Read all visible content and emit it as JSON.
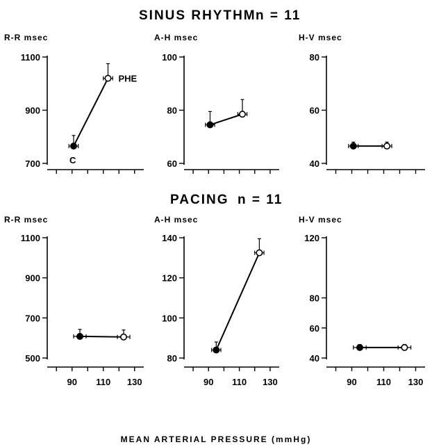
{
  "sections": [
    {
      "id": "sinus",
      "title": "SINUS RHYTHM",
      "n_label": "n = 11"
    },
    {
      "id": "pacing",
      "title": "PACING",
      "n_label": "n = 11"
    }
  ],
  "x_axis_label": "MEAN ARTERIAL PRESSURE (mmHg)",
  "chart_data": [
    {
      "type": "line",
      "section": "sinus",
      "panel_label": "R-R msec",
      "ylim": [
        700,
        1100
      ],
      "yticks": [
        700,
        900,
        1100
      ],
      "xlim": [
        75,
        135
      ],
      "xticks": [],
      "points": [
        {
          "condition": "C",
          "x": 91,
          "y": 765,
          "y_err": 40,
          "x_err": 3,
          "fill": "filled",
          "label": "C"
        },
        {
          "condition": "PHE",
          "x": 113,
          "y": 1020,
          "y_err": 55,
          "x_err": 3,
          "fill": "open",
          "label": "PHE"
        }
      ]
    },
    {
      "type": "line",
      "section": "sinus",
      "panel_label": "A-H msec",
      "ylim": [
        60,
        100
      ],
      "yticks": [
        60,
        80,
        100
      ],
      "xlim": [
        75,
        135
      ],
      "xticks": [],
      "points": [
        {
          "condition": "C",
          "x": 91,
          "y": 74.5,
          "y_err": 5,
          "x_err": 3,
          "fill": "filled"
        },
        {
          "condition": "PHE",
          "x": 112,
          "y": 78.5,
          "y_err": 5.5,
          "x_err": 3,
          "fill": "open"
        }
      ]
    },
    {
      "type": "line",
      "section": "sinus",
      "panel_label": "H-V msec",
      "ylim": [
        40,
        80
      ],
      "yticks": [
        40,
        60,
        80
      ],
      "xlim": [
        75,
        135
      ],
      "xticks": [],
      "points": [
        {
          "condition": "C",
          "x": 91,
          "y": 46.5,
          "y_err": 1.5,
          "x_err": 3,
          "fill": "filled"
        },
        {
          "condition": "PHE",
          "x": 112,
          "y": 46.5,
          "y_err": 1.5,
          "x_err": 3,
          "fill": "open"
        }
      ]
    },
    {
      "type": "line",
      "section": "pacing",
      "panel_label": "R-R msec",
      "ylim": [
        500,
        1100
      ],
      "yticks": [
        500,
        700,
        900,
        1100
      ],
      "xlim": [
        75,
        135
      ],
      "xticks": [
        90,
        110,
        130
      ],
      "points": [
        {
          "condition": "C",
          "x": 95,
          "y": 608,
          "y_err": 35,
          "x_err": 4,
          "fill": "filled"
        },
        {
          "condition": "PHE",
          "x": 123,
          "y": 605,
          "y_err": 35,
          "x_err": 4,
          "fill": "open"
        }
      ]
    },
    {
      "type": "line",
      "section": "pacing",
      "panel_label": "A-H msec",
      "ylim": [
        80,
        140
      ],
      "yticks": [
        80,
        100,
        120,
        140
      ],
      "xlim": [
        75,
        135
      ],
      "xticks": [
        90,
        110,
        130
      ],
      "points": [
        {
          "condition": "C",
          "x": 95,
          "y": 84,
          "y_err": 4,
          "x_err": 3,
          "fill": "filled"
        },
        {
          "condition": "PHE",
          "x": 123,
          "y": 132.5,
          "y_err": 7,
          "x_err": 3,
          "fill": "open"
        }
      ]
    },
    {
      "type": "line",
      "section": "pacing",
      "panel_label": "H-V msec",
      "ylim": [
        40,
        120
      ],
      "yticks": [
        40,
        60,
        80,
        120
      ],
      "xlim": [
        75,
        135
      ],
      "xticks": [
        90,
        110,
        130
      ],
      "points": [
        {
          "condition": "C",
          "x": 95,
          "y": 47,
          "y_err": 2,
          "x_err": 4,
          "fill": "filled"
        },
        {
          "condition": "PHE",
          "x": 123,
          "y": 47,
          "y_err": 2,
          "x_err": 4,
          "fill": "open"
        }
      ]
    }
  ]
}
